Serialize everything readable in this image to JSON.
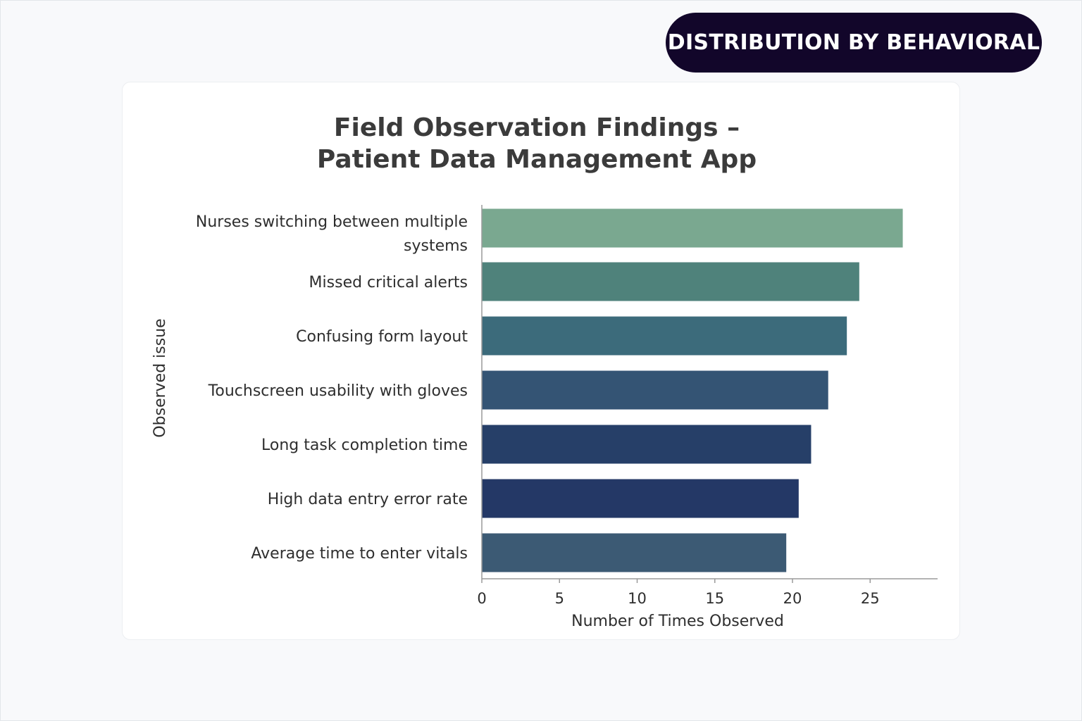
{
  "badge": {
    "label": "DISTRIBUTION BY BEHAVIORAL"
  },
  "chart_data": {
    "type": "bar",
    "orientation": "horizontal",
    "title_lines": [
      "Field Observation Findings –",
      "Patient Data Management App"
    ],
    "xlabel": "Number of Times Observed",
    "ylabel": "Observed issue",
    "xlim": [
      0,
      29.3
    ],
    "xticks": [
      0,
      5,
      10,
      15,
      20,
      25
    ],
    "grid": false,
    "categories": [
      "Nurses switching between multiple systems",
      "Missed critical alerts",
      "Confusing form layout",
      "Touchscreen usability with gloves",
      "Long task completion time",
      "High data entry error rate",
      "Average time to enter vitals"
    ],
    "category_label_lines": [
      [
        "Nurses switching between multiple",
        "systems"
      ],
      [
        "Missed critical alerts"
      ],
      [
        "Confusing form layout"
      ],
      [
        "Touchscreen usability with gloves"
      ],
      [
        "Long task completion time"
      ],
      [
        "High data entry error rate"
      ],
      [
        "Average time to enter vitals"
      ]
    ],
    "values": [
      27.1,
      24.3,
      23.5,
      22.3,
      21.2,
      20.4,
      19.6
    ],
    "colors": [
      "#7aa890",
      "#4f827b",
      "#3c6b7b",
      "#345474",
      "#263f68",
      "#243866",
      "#3c5a74"
    ]
  }
}
